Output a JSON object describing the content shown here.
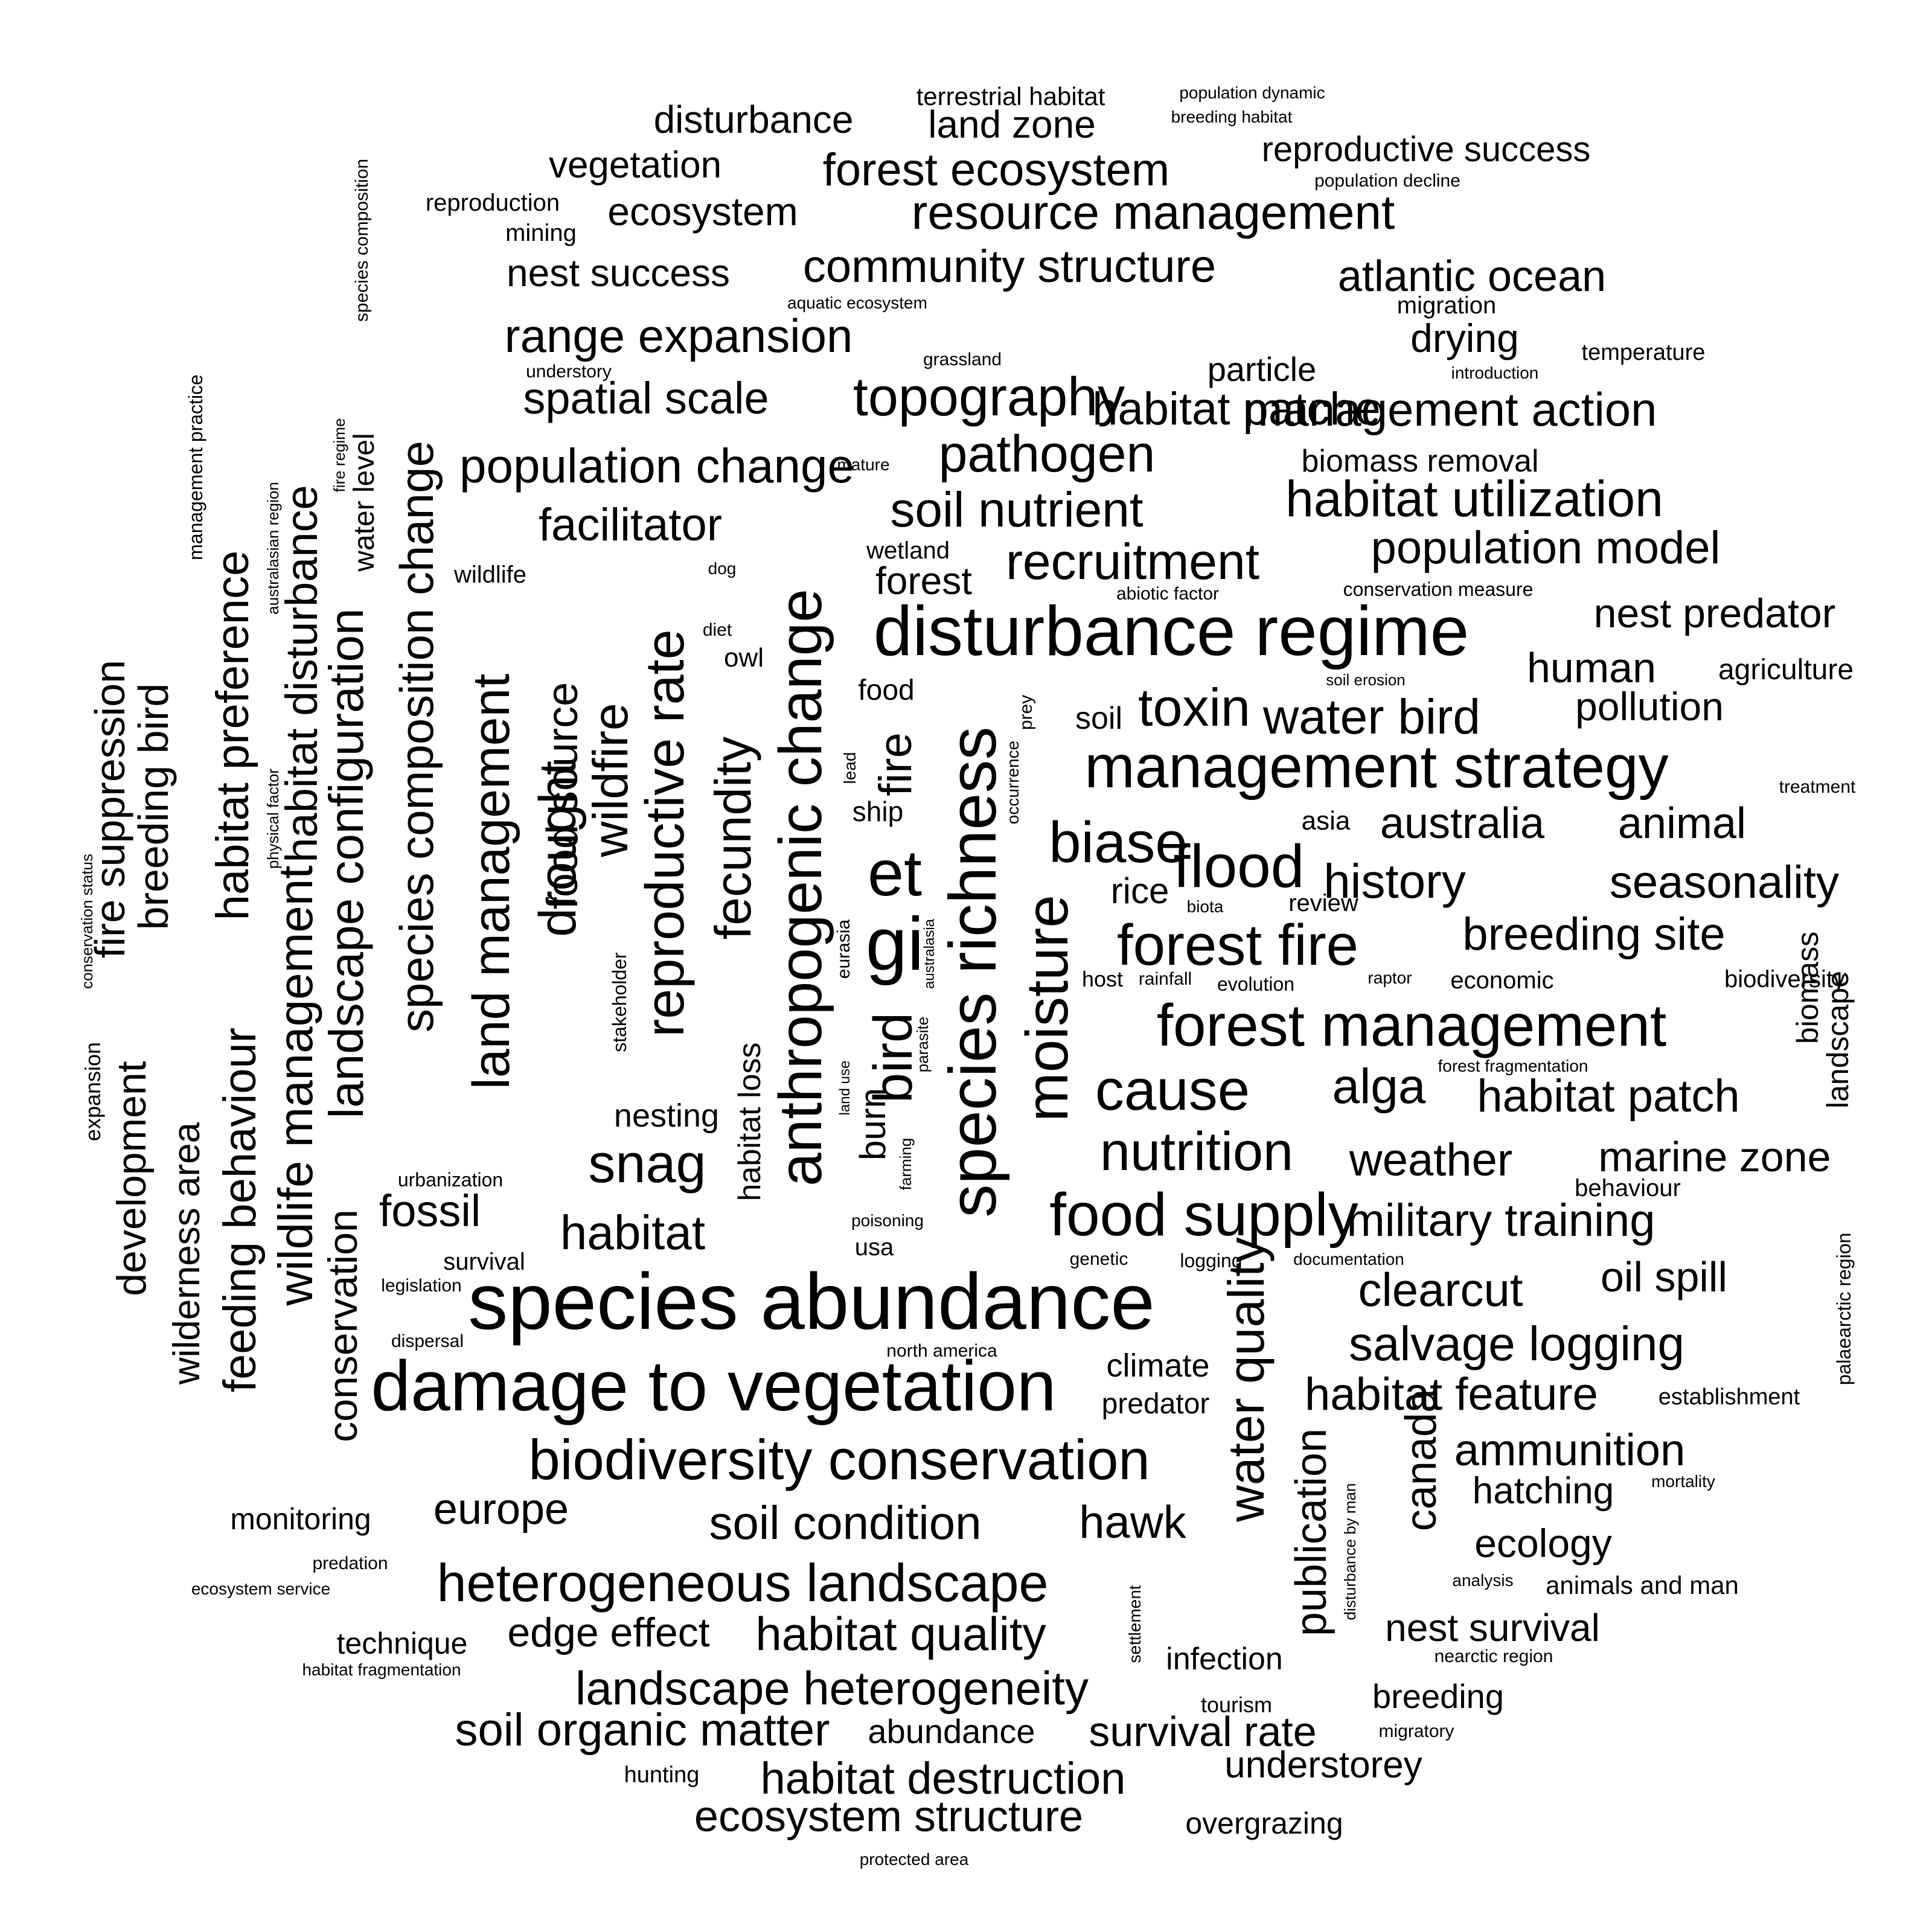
{
  "text_color": "#000000",
  "background_color": "#ffffff",
  "words": [
    "species abundance",
    "damage to vegetation",
    "species richness",
    "disturbance regime",
    "anthropogenic change",
    "biodiversity conservation",
    "management strategy",
    "forest management",
    "heterogeneous landscape",
    "moisture",
    "food supply",
    "reproductive rate",
    "land management",
    "fecundity",
    "forest fire",
    "landscape heterogeneity",
    "soil condition",
    "biase",
    "cause",
    "nutrition",
    "species composition change",
    "gi",
    "et",
    "bird",
    "water quality",
    "flood",
    "snag",
    "recruitment",
    "soil nutrient",
    "salvage logging",
    "drought",
    "landscape configuration",
    "wildlife management",
    "topography",
    "pathogen",
    "resource management",
    "range expansion",
    "population change",
    "spatial scale",
    "habitat patche",
    "community structure",
    "habitat",
    "wildfire",
    "food source",
    "toxin",
    "water bird",
    "alga",
    "habitat utilization",
    "habitat quality",
    "forest ecosystem",
    "ecosystem structure",
    "soil organic matter",
    "habitat destruction",
    "military training",
    "habitat feature",
    "management action",
    "population model",
    "feeding behaviour",
    "habitat preference",
    "habitat disturbance",
    "conservation",
    "fire",
    "clearcut",
    "hawk",
    "weather",
    "history",
    "breeding site",
    "australia",
    "animal",
    "seasonality",
    "habitat patch",
    "marine zone",
    "survival rate",
    "edge effect",
    "ammunition",
    "publication",
    "canada",
    "facilitator",
    "fossil",
    "europe",
    "atlantic ocean",
    "fire suppression",
    "breeding bird",
    "development",
    "wilderness area",
    "nest success",
    "ecosystem",
    "disturbance",
    "vegetation",
    "land zone",
    "reproductive success",
    "nest predator",
    "human",
    "pollution",
    "oil spill",
    "ecology",
    "hatching",
    "nest survival",
    "understorey",
    "abundance",
    "breeding",
    "drying",
    "particle",
    "forest",
    "burn",
    "habitat loss",
    "nesting",
    "rice",
    "climate",
    "predator",
    "infection",
    "overgrazing",
    "monitoring",
    "technique",
    "water level",
    "biomass",
    "landscape",
    "biomass removal",
    "terrestrial habitat",
    "reproduction",
    "mining",
    "agriculture",
    "soil",
    "food",
    "ship",
    "owl",
    "asia",
    "review",
    "wildlife",
    "behaviour",
    "survival",
    "animals and man",
    "establishment",
    "economic",
    "biodiversity",
    "wetland",
    "temperature",
    "migration",
    "treatment",
    "urbanization",
    "hunting",
    "tourism",
    "mortality",
    "host",
    "evolution",
    "stakeholder",
    "population dynamic",
    "breeding habitat",
    "population decline",
    "aquatic ecosystem",
    "grassland",
    "understory",
    "introduction",
    "mature",
    "dog",
    "diet",
    "abiotic factor",
    "conservation measure",
    "soil erosion",
    "prey",
    "lead",
    "occurrence",
    "eurasia",
    "australasia",
    "parasite",
    "land use",
    "farming",
    "poisoning",
    "usa",
    "genetic",
    "logging",
    "documentation",
    "legislation",
    "dispersal",
    "north america",
    "predation",
    "ecosystem service",
    "habitat fragmentation",
    "protected area",
    "migratory",
    "analysis",
    "nearctic region",
    "settlement",
    "disturbance by man",
    "palaearctic region",
    "forest fragmentation",
    "raptor",
    "rainfall",
    "biota",
    "species composition",
    "management practice",
    "fire regime",
    "australasian region",
    "physical factor",
    "conservation status",
    "expansion"
  ]
}
